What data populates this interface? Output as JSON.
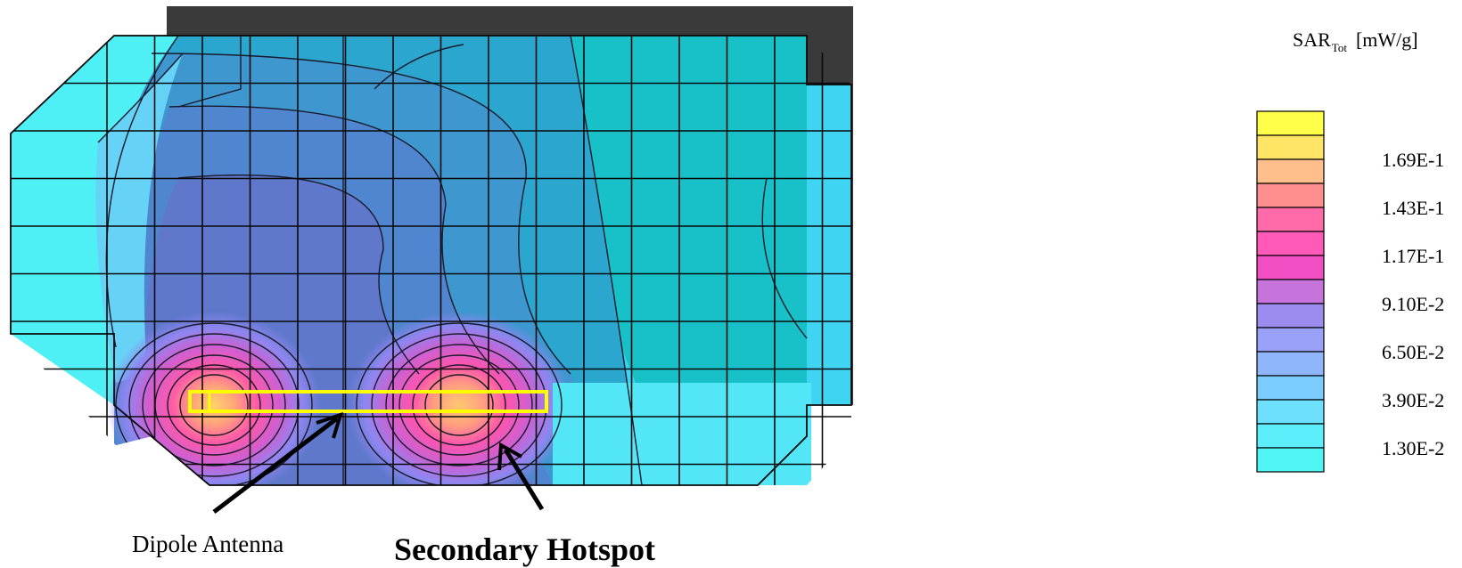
{
  "chart_data": {
    "type": "heatmap",
    "colorbar": {
      "title": "SAR",
      "title_subscript": "Tot",
      "unit": "[mW/g]",
      "tick_labels": [
        "1.69E-1",
        "1.43E-1",
        "1.17E-1",
        "9.10E-2",
        "6.50E-2",
        "3.90E-2",
        "1.30E-2"
      ],
      "colors_top_to_bottom": [
        "#ffff4a",
        "#ffe466",
        "#ffbf8c",
        "#ff8f8f",
        "#ff6aa8",
        "#ff5ab8",
        "#f24ec4",
        "#c673dc",
        "#9d8cf0",
        "#99a2f8",
        "#8fb6fb",
        "#79ccfb",
        "#6ce0fc",
        "#5ceefa",
        "#4ef5f3"
      ]
    },
    "annotations": [
      "Dipole Antenna",
      "Secondary Hotspot"
    ]
  }
}
